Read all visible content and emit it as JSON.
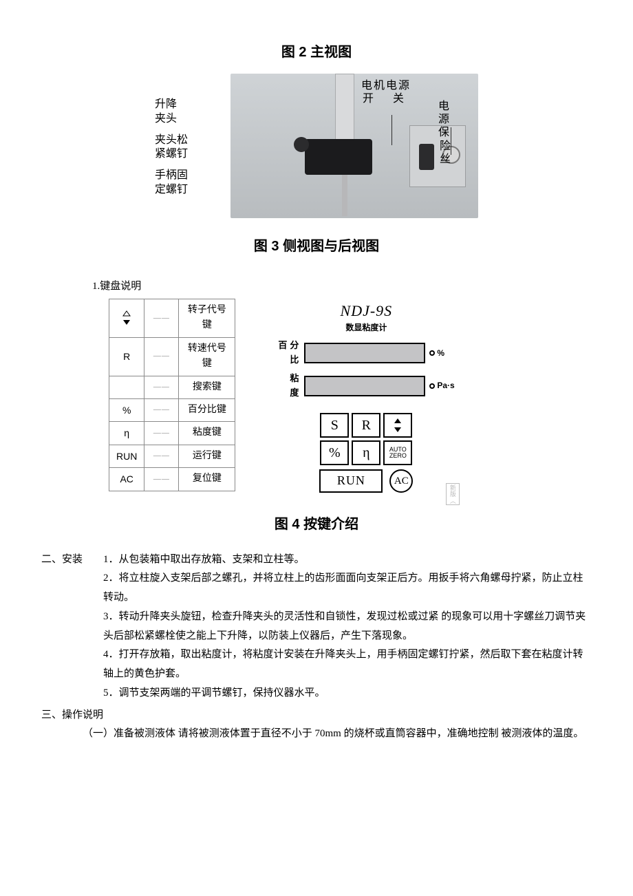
{
  "figures": {
    "fig2_title": "图 2 主视图",
    "fig3_title": "图 3 侧视图与后视图",
    "fig4_title": "图 4 按键介绍"
  },
  "fig3_labels": {
    "left": [
      "升降\n夹头",
      "夹头松\n紧螺钉",
      "手柄固\n定螺钉"
    ],
    "right_top_line1": "电机电源",
    "right_top_line2": "开关",
    "right_fuse_line1": "电源保",
    "right_fuse_line2": "险丝"
  },
  "keyboard": {
    "caption": "1.键盘说明",
    "rows": [
      {
        "key_type": "arrows",
        "desc": "转子代号键"
      },
      {
        "key": "R",
        "desc": "转速代号键"
      },
      {
        "key": "",
        "desc": "搜索键"
      },
      {
        "key": "%",
        "desc": "百分比键"
      },
      {
        "key": "η",
        "desc": "粘度键"
      },
      {
        "key": "RUN",
        "desc": "运行键"
      },
      {
        "key": "AC",
        "desc": "复位键"
      }
    ],
    "dash": "——"
  },
  "panel": {
    "title": "NDJ-9S",
    "subtitle": "数显粘度计",
    "row1_label": "百分比",
    "row1_unit": "%",
    "row2_label": "粘 度",
    "row2_unit": "Pa·s",
    "keys": {
      "r1": [
        "S",
        "R",
        "arrows"
      ],
      "r2": [
        "%",
        "η",
        "AUTO\nZERO"
      ],
      "run": "RUN",
      "ac": "AC"
    },
    "stamp": "新\n版\n︿"
  },
  "text": {
    "sec2_head": "二、安装",
    "sec2_items": [
      "1．从包装箱中取出存放箱、支架和立柱等。",
      "2．将立柱旋入支架后部之螺孔，并将立柱上的齿形面面向支架正后方。用扳手将六角螺母拧紧，防止立柱转动。",
      "3．转动升降夹头旋钮，检查升降夹头的灵活性和自锁性，发现过松或过紧  的现象可以用十字螺丝刀调节夹头后部松紧螺栓使之能上下升降，以防装上仪器后，产生下落现象。",
      "4．打开存放箱，取出粘度计，将粘度计安装在升降夹头上，用手柄固定螺钉拧紧，然后取下套在粘度计转轴上的黄色护套。",
      "5．调节支架两端的平调节螺钉，保持仪器水平。"
    ],
    "sec3_head": "三、操作说明",
    "sec3_sub": "（一）准备被测液体      请将被测液体置于直径不小于 70mm 的烧杯或直筒容器中，准确地控制 被测液体的温度。"
  },
  "colors": {
    "text": "#000000",
    "border": "#8a8a8a",
    "photo_bg_top": "#cfd3d6",
    "photo_bg_bot": "#b8bcbf",
    "display_bg": "#c4c4c6"
  }
}
